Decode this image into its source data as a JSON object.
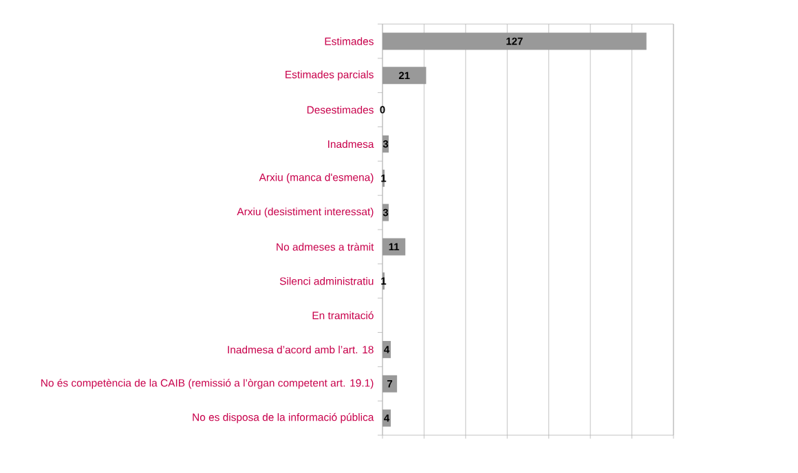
{
  "chart_data": {
    "type": "bar",
    "orientation": "horizontal",
    "categories": [
      "Estimades",
      "Estimades parcials",
      "Desestimades",
      "Inadmesa",
      "Arxiu (manca d'esmena)",
      "Arxiu (desistiment interessat)",
      "No admeses a tràmit",
      "Silenci administratiu",
      "En tramitació",
      "Inadmesa d’acord amb l’art. 18",
      "No és competència de la CAIB (remissió a l’òrgan competent art. 19.1)",
      "No es disposa de la informació pública"
    ],
    "values": [
      127,
      21,
      0,
      3,
      1,
      3,
      11,
      1,
      null,
      4,
      7,
      4
    ],
    "color": "#999999",
    "xlim": [
      0,
      140
    ],
    "xticks": [
      {
        "value": 0,
        "label": null
      },
      {
        "value": 20,
        "label": null
      },
      {
        "value": 40,
        "label": null
      },
      {
        "value": 60,
        "label": null
      },
      {
        "value": 80,
        "label": null
      },
      {
        "value": 100,
        "label": null
      },
      {
        "value": 120,
        "label": null
      },
      {
        "value": 140,
        "label": null
      }
    ],
    "grid": "x",
    "tick_labels": "y",
    "data_labels": true
  }
}
